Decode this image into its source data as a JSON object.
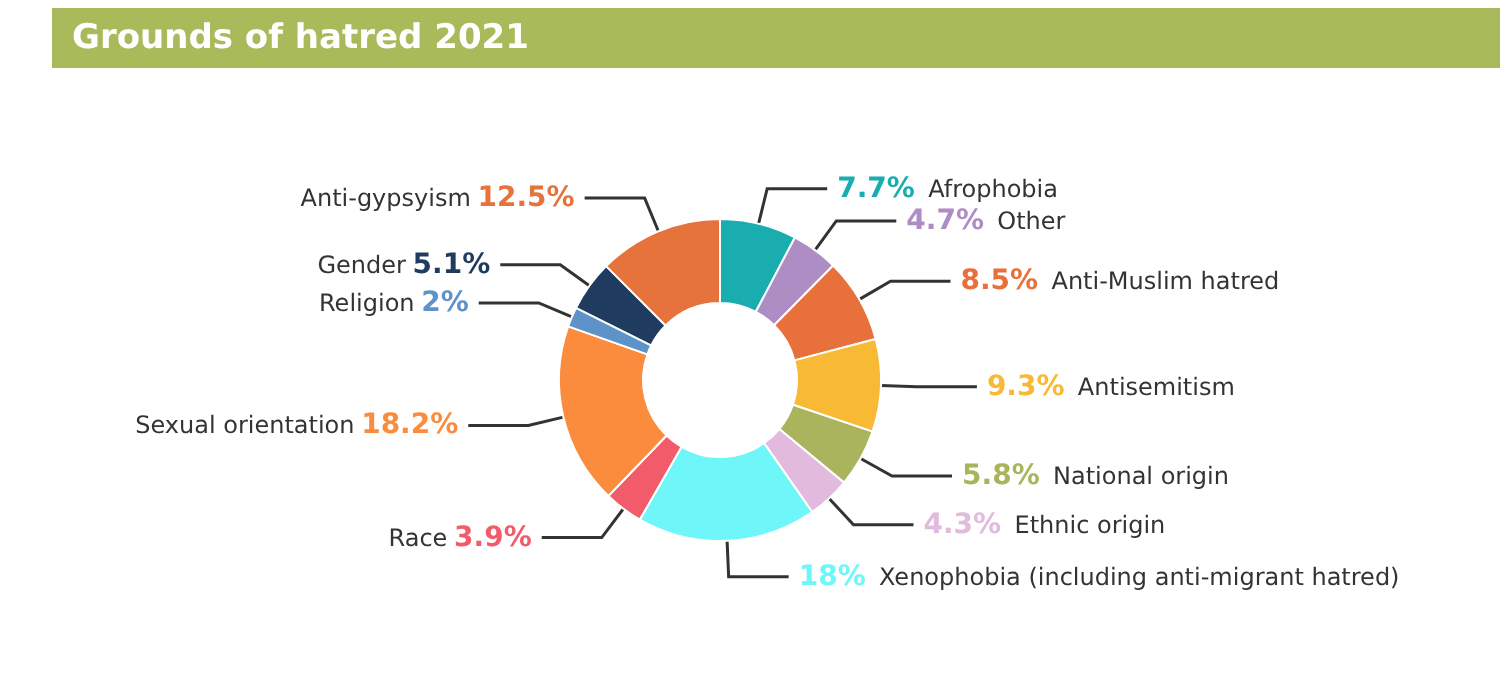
{
  "chart_data": {
    "type": "donut",
    "title": "Grounds of hatred 2021",
    "categories": [
      "Afrophobia",
      "Other",
      "Anti-Muslim hatred",
      "Antisemitism",
      "National origin",
      "Ethnic origin",
      "Xenophobia (including anti-migrant hatred)",
      "Race",
      "Sexual orientation",
      "Religion",
      "Gender",
      "Anti-gypsyism"
    ],
    "values": [
      7.7,
      4.7,
      8.5,
      9.3,
      5.8,
      4.3,
      18,
      3.9,
      18.2,
      2,
      5.1,
      12.5
    ],
    "value_labels": [
      "7.7%",
      "4.7%",
      "8.5%",
      "9.3%",
      "5.8%",
      "4.3%",
      "18%",
      "3.9%",
      "18.2%",
      "2%",
      "5.1%",
      "12.5%"
    ],
    "colors": [
      "#1aadb0",
      "#ae8cc4",
      "#e8703a",
      "#f8ba34",
      "#a9b45c",
      "#e2bade",
      "#6ff6f8",
      "#f25c6a",
      "#fb8c3e",
      "#5d93c9",
      "#1f3b5e",
      "#e6733c"
    ],
    "legend": false
  }
}
